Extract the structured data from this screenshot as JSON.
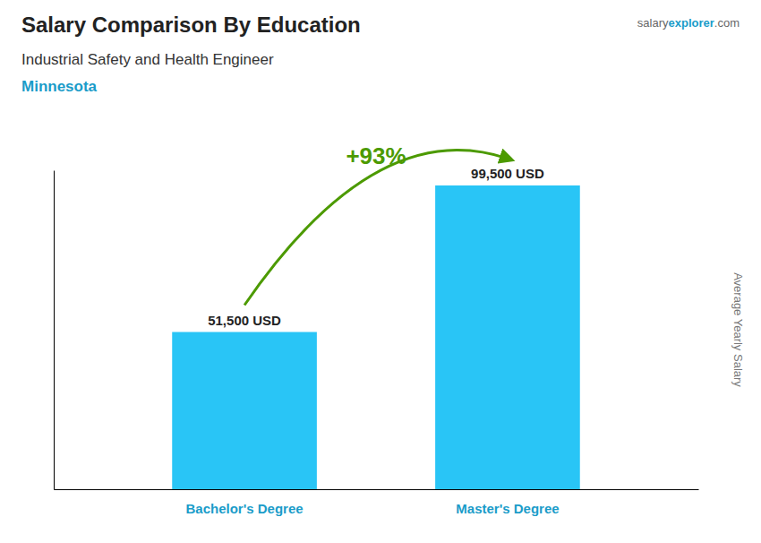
{
  "chart_data": {
    "type": "bar",
    "title": "Salary Comparison By Education",
    "subtitle": "Industrial Safety and Health Engineer",
    "ylabel": "Average Yearly Salary",
    "categories": [
      "Bachelor's Degree",
      "Master's Degree"
    ],
    "values": [
      51500,
      99500
    ],
    "value_labels": [
      "51,500 USD",
      "99,500 USD"
    ],
    "data_labels": true,
    "color": "#29c5f6",
    "ylim": [
      0,
      104475
    ],
    "tick_labels": "x",
    "grid": false,
    "annotations": [
      "Minnesota",
      "salary",
      "explorer",
      ".com",
      "+93%"
    ]
  }
}
